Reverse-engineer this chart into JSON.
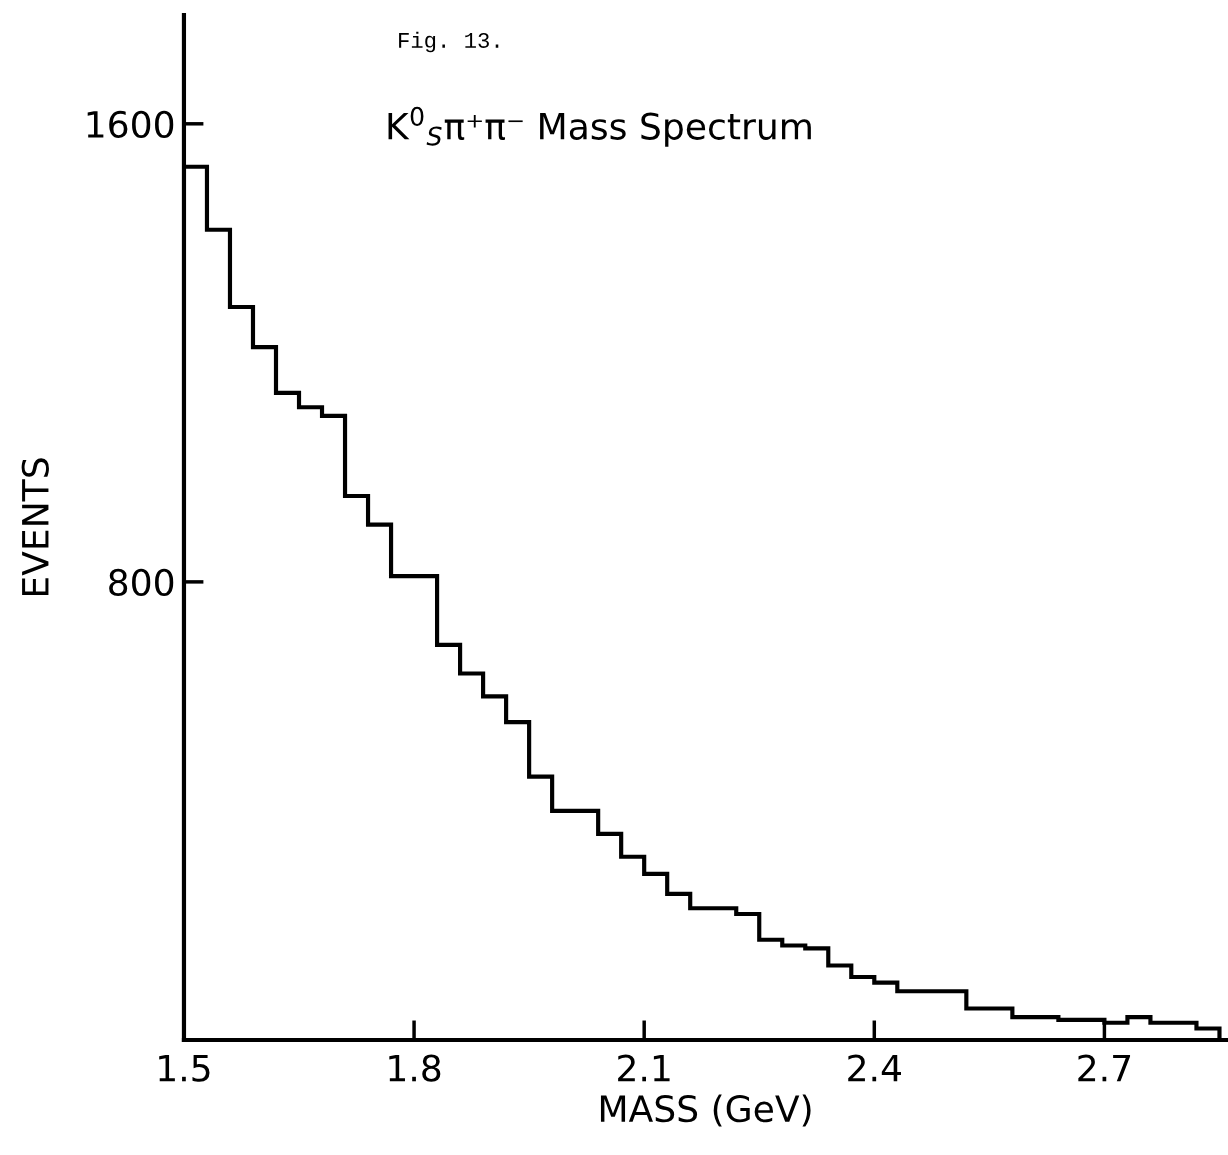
{
  "chart_data": {
    "type": "histogram",
    "title": "K$^{0}$$_{S}$π⁺π⁻ Mass Spectrum",
    "subtitle": "Fig. 13.",
    "xlabel": "MASS (GeV)",
    "ylabel": "EVENTS",
    "bins": [
      1.5,
      1.53,
      1.56,
      1.59,
      1.62,
      1.65,
      1.68,
      1.71,
      1.74,
      1.77,
      1.8,
      1.83,
      1.86,
      1.89,
      1.92,
      1.95,
      1.98,
      2.01,
      2.04,
      2.07,
      2.1,
      2.13,
      2.16,
      2.19,
      2.22,
      2.25,
      2.28,
      2.31,
      2.34,
      2.37,
      2.4,
      2.43,
      2.46,
      2.49,
      2.52,
      2.55,
      2.58,
      2.61,
      2.64,
      2.67,
      2.7,
      2.73,
      2.76,
      2.79,
      2.82,
      2.85
    ],
    "values": [
      1525,
      1415,
      1280,
      1210,
      1130,
      1105,
      1090,
      950,
      900,
      810,
      810,
      690,
      640,
      600,
      555,
      460,
      400,
      400,
      360,
      320,
      290,
      255,
      230,
      230,
      220,
      175,
      165,
      160,
      130,
      110,
      100,
      85,
      85,
      85,
      55,
      55,
      40,
      40,
      35,
      35,
      30,
      40,
      30,
      30,
      20
    ],
    "color": "#000000",
    "xlim": [
      1.5,
      2.86
    ],
    "ylim": [
      0,
      1790
    ],
    "xticks": [
      1.5,
      1.8,
      2.1,
      2.4,
      2.7
    ],
    "yticks": [
      800,
      1600
    ],
    "grid": false,
    "legend": false
  }
}
